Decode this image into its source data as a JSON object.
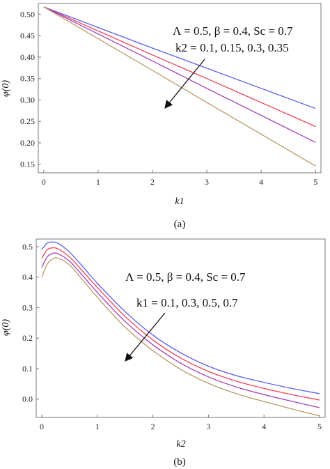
{
  "chart_data": [
    {
      "type": "line",
      "caption": "(a)",
      "xlabel": "k1",
      "ylabel": "φ(0)",
      "xlim": [
        -0.1,
        5.1
      ],
      "ylim": [
        0.13,
        0.525
      ],
      "xticks": [
        "0",
        "1",
        "2",
        "3",
        "4",
        "5"
      ],
      "yticks": [
        "0.15",
        "0.20",
        "0.25",
        "0.30",
        "0.35",
        "0.40",
        "0.45",
        "0.50"
      ],
      "annotation_line1": "Λ = 0.5, β = 0.4, Sc = 0.7",
      "annotation_line2": "k2 = 0.1, 0.15, 0.3, 0.35",
      "colors": [
        "#5b5bf0",
        "#ee4455",
        "#a040b8",
        "#b89868"
      ],
      "series": [
        {
          "x": [
            0,
            1,
            2,
            3,
            4,
            5
          ],
          "values": [
            0.517,
            0.469,
            0.421,
            0.374,
            0.327,
            0.28
          ]
        },
        {
          "x": [
            0,
            1,
            2,
            3,
            4,
            5
          ],
          "values": [
            0.517,
            0.461,
            0.405,
            0.35,
            0.294,
            0.238
          ]
        },
        {
          "x": [
            0,
            1,
            2,
            3,
            4,
            5
          ],
          "values": [
            0.517,
            0.454,
            0.391,
            0.327,
            0.264,
            0.201
          ]
        },
        {
          "x": [
            0,
            1,
            2,
            3,
            4,
            5
          ],
          "values": [
            0.517,
            0.443,
            0.369,
            0.294,
            0.22,
            0.146
          ]
        }
      ]
    },
    {
      "type": "line",
      "caption": "(b)",
      "xlabel": "k2",
      "ylabel": "φ(0)",
      "xlim": [
        -0.1,
        5.1
      ],
      "ylim": [
        -0.06,
        0.525
      ],
      "xticks": [
        "0",
        "1",
        "2",
        "3",
        "4",
        "5"
      ],
      "yticks": [
        "0.0",
        "0.1",
        "0.2",
        "0.3",
        "0.4",
        "0.5"
      ],
      "annotation_line1": "Λ = 0.5, β = 0.4, Sc = 0.7",
      "annotation_line2": "k1 = 0.1, 0.3, 0.5, 0.7",
      "colors": [
        "#5b5bf0",
        "#ee4455",
        "#a040b8",
        "#b89868"
      ],
      "series": [
        {
          "x": [
            0,
            0.1,
            0.2,
            0.3,
            0.5,
            0.75,
            1,
            1.5,
            2,
            2.5,
            3,
            3.5,
            4,
            4.5,
            5
          ],
          "values": [
            0.49,
            0.512,
            0.515,
            0.51,
            0.482,
            0.432,
            0.38,
            0.287,
            0.21,
            0.152,
            0.108,
            0.077,
            0.055,
            0.035,
            0.018
          ]
        },
        {
          "x": [
            0,
            0.1,
            0.2,
            0.3,
            0.5,
            0.75,
            1,
            1.5,
            2,
            2.5,
            3,
            3.5,
            4,
            4.5,
            5
          ],
          "values": [
            0.462,
            0.49,
            0.496,
            0.492,
            0.466,
            0.417,
            0.366,
            0.271,
            0.194,
            0.135,
            0.091,
            0.059,
            0.035,
            0.015,
            -0.003
          ]
        },
        {
          "x": [
            0,
            0.1,
            0.2,
            0.3,
            0.5,
            0.75,
            1,
            1.5,
            2,
            2.5,
            3,
            3.5,
            4,
            4.5,
            5
          ],
          "values": [
            0.432,
            0.467,
            0.478,
            0.476,
            0.452,
            0.402,
            0.35,
            0.255,
            0.178,
            0.118,
            0.073,
            0.04,
            0.015,
            -0.007,
            -0.028
          ]
        },
        {
          "x": [
            0,
            0.1,
            0.2,
            0.3,
            0.5,
            0.75,
            1,
            1.5,
            2,
            2.5,
            3,
            3.5,
            4,
            4.5,
            5
          ],
          "values": [
            0.4,
            0.443,
            0.46,
            0.462,
            0.44,
            0.388,
            0.334,
            0.236,
            0.159,
            0.098,
            0.052,
            0.018,
            -0.008,
            -0.032,
            -0.055
          ]
        }
      ]
    }
  ]
}
